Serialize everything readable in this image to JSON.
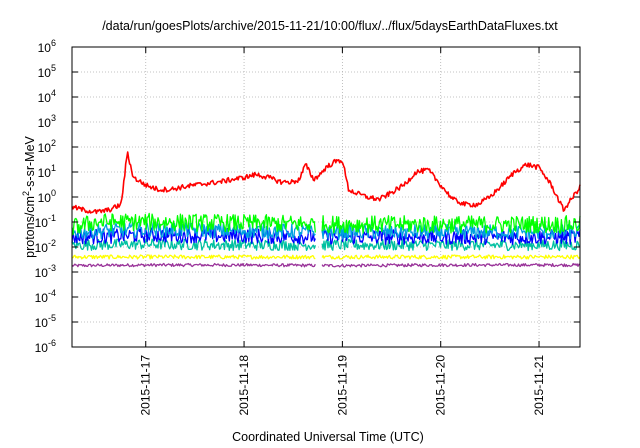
{
  "chart_data": {
    "type": "line",
    "title": "/data/run/goesPlots/archive/2015-11-21/10:00/flux/../flux/5daysEarthDataFluxes.txt",
    "xlabel": "Coordinated Universal Time (UTC)",
    "ylabel": {
      "base": "protons/cm",
      "sup": "2",
      "rest": "-s-sr-MeV"
    },
    "yscale": "log",
    "ylim": [
      1e-06,
      1000000
    ],
    "yticks": [
      {
        "base": "10",
        "exp": "-6",
        "value": -6
      },
      {
        "base": "10",
        "exp": "-5",
        "value": -5
      },
      {
        "base": "10",
        "exp": "-4",
        "value": -4
      },
      {
        "base": "10",
        "exp": "-3",
        "value": -3
      },
      {
        "base": "10",
        "exp": "-2",
        "value": -2
      },
      {
        "base": "10",
        "exp": "-1",
        "value": -1
      },
      {
        "base": "10",
        "exp": "0",
        "value": 0
      },
      {
        "base": "10",
        "exp": "1",
        "value": 1
      },
      {
        "base": "10",
        "exp": "2",
        "value": 2
      },
      {
        "base": "10",
        "exp": "3",
        "value": 3
      },
      {
        "base": "10",
        "exp": "4",
        "value": 4
      },
      {
        "base": "10",
        "exp": "5",
        "value": 5
      },
      {
        "base": "10",
        "exp": "6",
        "value": 6
      }
    ],
    "xlim": [
      "2015-11-16T06:00",
      "2015-11-21T10:00"
    ],
    "xticks": [
      "2015-11-17",
      "2015-11-18",
      "2015-11-19",
      "2015-11-20",
      "2015-11-21"
    ],
    "grid": true,
    "legend": "none",
    "series": [
      {
        "color": "#ff0000",
        "noise": 0.1,
        "x": [
          "2015-11-16T06:00",
          "2015-11-16T09:00",
          "2015-11-16T12:00",
          "2015-11-16T15:00",
          "2015-11-16T18:00",
          "2015-11-16T19:30",
          "2015-11-16T21:00",
          "2015-11-17T00:00",
          "2015-11-17T03:00",
          "2015-11-17T06:00",
          "2015-11-17T09:00",
          "2015-11-17T12:00",
          "2015-11-17T15:00",
          "2015-11-17T18:00",
          "2015-11-17T21:00",
          "2015-11-18T00:00",
          "2015-11-18T03:00",
          "2015-11-18T06:00",
          "2015-11-18T09:00",
          "2015-11-18T12:00",
          "2015-11-18T13:30",
          "2015-11-18T15:00",
          "2015-11-18T17:00",
          "2015-11-18T18:30",
          "2015-11-18T20:00",
          "2015-11-18T22:00",
          "2015-11-19T00:00",
          "2015-11-19T01:30",
          "2015-11-19T03:00",
          "2015-11-19T06:00",
          "2015-11-19T09:00",
          "2015-11-19T12:00",
          "2015-11-19T15:00",
          "2015-11-19T18:00",
          "2015-11-19T21:00",
          "2015-11-20T00:00",
          "2015-11-20T03:00",
          "2015-11-20T06:00",
          "2015-11-20T09:00",
          "2015-11-20T12:00",
          "2015-11-20T15:00",
          "2015-11-20T18:00",
          "2015-11-20T21:00",
          "2015-11-21T00:00",
          "2015-11-21T03:00",
          "2015-11-21T06:00",
          "2015-11-21T10:00"
        ],
        "y": [
          0.4,
          0.3,
          0.25,
          0.3,
          0.5,
          60,
          6,
          3,
          2,
          2,
          2.5,
          3,
          3.5,
          4,
          5,
          6,
          8,
          6,
          4,
          4,
          5,
          20,
          5,
          8,
          15,
          25,
          30,
          2,
          1.5,
          1,
          0.8,
          1.5,
          3,
          10,
          12,
          3,
          0.8,
          0.5,
          0.5,
          1,
          3,
          10,
          20,
          15,
          3,
          0.3,
          2.5
        ]
      },
      {
        "color": "#00ff00",
        "noise": 0.35,
        "x": [
          "2015-11-16T06:00",
          "2015-11-16T12:00",
          "2015-11-17T00:00",
          "2015-11-18T00:00",
          "2015-11-19T00:00",
          "2015-11-20T00:00",
          "2015-11-21T00:00",
          "2015-11-21T10:00"
        ],
        "y": [
          0.06,
          0.1,
          0.1,
          0.09,
          0.08,
          0.08,
          0.08,
          0.08
        ]
      },
      {
        "color": "#00a0e0",
        "noise": 0.3,
        "x": [
          "2015-11-16T06:00",
          "2015-11-17T00:00",
          "2015-11-18T00:00",
          "2015-11-19T00:00",
          "2015-11-20T00:00",
          "2015-11-21T00:00",
          "2015-11-21T10:00"
        ],
        "y": [
          0.04,
          0.05,
          0.045,
          0.04,
          0.04,
          0.04,
          0.04
        ]
      },
      {
        "color": "#0000ff",
        "noise": 0.3,
        "x": [
          "2015-11-16T06:00",
          "2015-11-17T00:00",
          "2015-11-18T00:00",
          "2015-11-19T00:00",
          "2015-11-20T00:00",
          "2015-11-21T00:00",
          "2015-11-21T10:00"
        ],
        "y": [
          0.025,
          0.03,
          0.028,
          0.025,
          0.025,
          0.025,
          0.025
        ]
      },
      {
        "color": "#00c0a0",
        "noise": 0.22,
        "x": [
          "2015-11-16T06:00",
          "2015-11-17T00:00",
          "2015-11-18T00:00",
          "2015-11-19T00:00",
          "2015-11-20T00:00",
          "2015-11-21T00:00",
          "2015-11-21T10:00"
        ],
        "y": [
          0.012,
          0.013,
          0.012,
          0.012,
          0.012,
          0.012,
          0.012
        ]
      },
      {
        "color": "#ffff00",
        "noise": 0.08,
        "x": [
          "2015-11-16T06:00",
          "2015-11-17T00:00",
          "2015-11-18T00:00",
          "2015-11-19T00:00",
          "2015-11-20T00:00",
          "2015-11-21T00:00",
          "2015-11-21T10:00"
        ],
        "y": [
          0.004,
          0.004,
          0.004,
          0.004,
          0.004,
          0.004,
          0.004
        ]
      },
      {
        "color": "#993399",
        "noise": 0.06,
        "x": [
          "2015-11-16T06:00",
          "2015-11-17T00:00",
          "2015-11-18T00:00",
          "2015-11-19T00:00",
          "2015-11-20T00:00",
          "2015-11-21T00:00",
          "2015-11-21T10:00"
        ],
        "y": [
          0.0018,
          0.0019,
          0.0019,
          0.0018,
          0.0019,
          0.0019,
          0.0019
        ]
      }
    ]
  }
}
